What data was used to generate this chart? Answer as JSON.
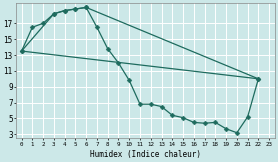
{
  "bg_color": "#cce8e8",
  "grid_color": "#ffffff",
  "line_color": "#1e6b5e",
  "xlabel": "Humidex (Indice chaleur)",
  "xlim": [
    -0.5,
    23.5
  ],
  "ylim": [
    2.5,
    19.5
  ],
  "yticks": [
    3,
    5,
    7,
    9,
    11,
    13,
    15,
    17
  ],
  "line1_x": [
    0,
    1,
    2,
    3,
    4,
    5,
    6,
    7,
    8,
    9,
    10,
    11,
    12,
    13,
    14,
    15,
    16,
    17,
    18,
    19,
    20,
    21,
    22
  ],
  "line1_y": [
    13.5,
    16.5,
    17.0,
    18.2,
    18.6,
    18.8,
    19.0,
    16.5,
    13.8,
    12.0,
    9.8,
    6.8,
    6.8,
    6.5,
    5.4,
    5.1,
    4.5,
    4.4,
    4.5,
    3.7,
    3.2,
    5.2,
    10.0
  ],
  "line2_x": [
    0,
    3,
    4,
    5,
    6,
    22
  ],
  "line2_y": [
    13.5,
    18.2,
    18.6,
    18.8,
    19.0,
    10.0
  ],
  "line3_x": [
    0,
    22
  ],
  "line3_y": [
    13.5,
    10.0
  ],
  "marker_x1": [
    0,
    1,
    2,
    3,
    4,
    5,
    6,
    7,
    8,
    9,
    10,
    11,
    12,
    13,
    14,
    15,
    16,
    17,
    18,
    19,
    20,
    21,
    22
  ],
  "marker_y1": [
    13.5,
    16.5,
    17.0,
    18.2,
    18.6,
    18.8,
    19.0,
    16.5,
    13.8,
    12.0,
    9.8,
    6.8,
    6.8,
    6.5,
    5.4,
    5.1,
    4.5,
    4.4,
    4.5,
    3.7,
    3.2,
    5.2,
    10.0
  ],
  "marker_x2": [
    0,
    3,
    4,
    5,
    6,
    22
  ],
  "marker_y2": [
    13.5,
    18.2,
    18.6,
    18.8,
    19.0,
    10.0
  ]
}
